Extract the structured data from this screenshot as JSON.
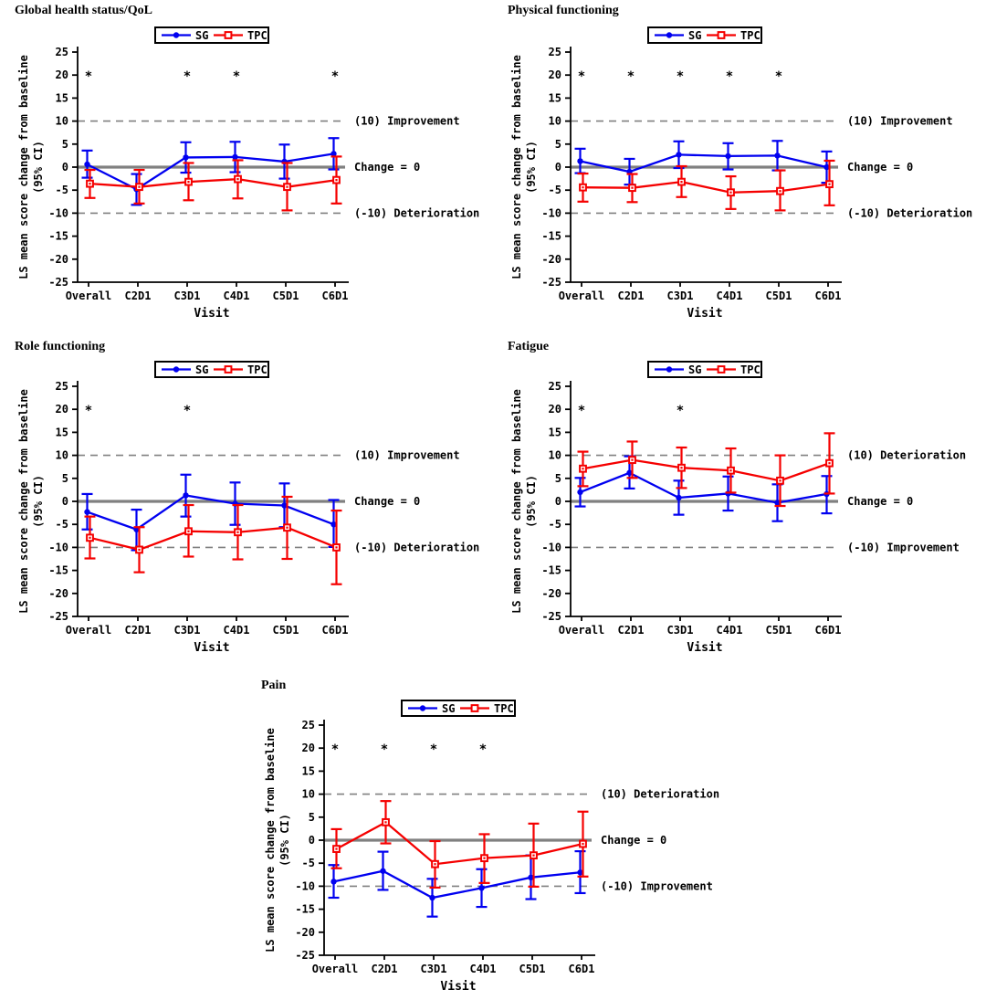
{
  "figure": {
    "description_visible_text_only": "Five line panels of LS mean score change from baseline (95% CI) by visit, SG vs TPC",
    "colors": {
      "sg": "#0000F0",
      "tpc": "#F50000",
      "zero_line": "#808080",
      "dashed_line": "#808080",
      "text": "#000000",
      "legend_border": "#000000",
      "background": "#FFFFFF"
    },
    "legend_labels": [
      "SG",
      "TPC"
    ],
    "significance_symbol": "*"
  },
  "chart_data": [
    {
      "type": "line",
      "title": "Global health status/QoL",
      "categories": [
        "Overall",
        "C2D1",
        "C3D1",
        "C4D1",
        "C5D1",
        "C6D1"
      ],
      "xlabel": "Visit",
      "ylabel_lines": [
        "LS mean score change from baseline",
        "(95% CI)"
      ],
      "ylim": [
        -25,
        25
      ],
      "ytick_step": 5,
      "legend_position": "top",
      "significance_y": 20,
      "significance_marker": "*",
      "significant_visits": [
        true,
        false,
        true,
        true,
        false,
        true
      ],
      "ref_lines": [
        {
          "y": 10,
          "style": "dashed",
          "label": "(10) Improvement"
        },
        {
          "y": 0,
          "style": "solid",
          "label": "Change = 0"
        },
        {
          "y": -10,
          "style": "dashed",
          "label": "(-10) Deterioration"
        }
      ],
      "series": [
        {
          "name": "SG",
          "color": "#0000F0",
          "marker": "filled-circle",
          "values": [
            0.6,
            -4.8,
            2.1,
            2.2,
            1.2,
            2.9
          ],
          "ci_lower": [
            -2.3,
            -8.2,
            -1.2,
            -1.1,
            -2.5,
            -0.5
          ],
          "ci_upper": [
            3.6,
            -1.5,
            5.4,
            5.5,
            4.9,
            6.3
          ]
        },
        {
          "name": "TPC",
          "color": "#F50000",
          "marker": "open-square",
          "values": [
            -3.6,
            -4.3,
            -3.2,
            -2.6,
            -4.3,
            -2.8
          ],
          "ci_lower": [
            -6.7,
            -7.9,
            -7.2,
            -6.8,
            -9.4,
            -7.9
          ],
          "ci_upper": [
            -0.6,
            -0.6,
            0.9,
            1.5,
            0.9,
            2.3
          ]
        }
      ]
    },
    {
      "type": "line",
      "title": "Physical functioning",
      "categories": [
        "Overall",
        "C2D1",
        "C3D1",
        "C4D1",
        "C5D1",
        "C6D1"
      ],
      "xlabel": "Visit",
      "ylabel_lines": [
        "LS mean score change from baseline",
        "(95% CI)"
      ],
      "ylim": [
        -25,
        25
      ],
      "ytick_step": 5,
      "legend_position": "top",
      "significance_y": 20,
      "significance_marker": "*",
      "significant_visits": [
        true,
        true,
        true,
        true,
        true,
        false
      ],
      "ref_lines": [
        {
          "y": 10,
          "style": "dashed",
          "label": "(10) Improvement"
        },
        {
          "y": 0,
          "style": "solid",
          "label": "Change = 0"
        },
        {
          "y": -10,
          "style": "dashed",
          "label": "(-10) Deterioration"
        }
      ],
      "series": [
        {
          "name": "SG",
          "color": "#0000F0",
          "marker": "filled-circle",
          "values": [
            1.3,
            -1.0,
            2.7,
            2.4,
            2.5,
            0.0
          ],
          "ci_lower": [
            -1.3,
            -3.8,
            -0.2,
            -0.5,
            -0.7,
            -3.4
          ],
          "ci_upper": [
            4.0,
            1.8,
            5.6,
            5.2,
            5.7,
            3.4
          ]
        },
        {
          "name": "TPC",
          "color": "#F50000",
          "marker": "open-square",
          "values": [
            -4.4,
            -4.5,
            -3.2,
            -5.5,
            -5.2,
            -3.7
          ],
          "ci_lower": [
            -7.5,
            -7.6,
            -6.5,
            -9.1,
            -9.4,
            -8.3
          ],
          "ci_upper": [
            -1.4,
            -1.5,
            0.2,
            -2.0,
            -0.7,
            1.4
          ]
        }
      ]
    },
    {
      "type": "line",
      "title": "Role functioning",
      "categories": [
        "Overall",
        "C2D1",
        "C3D1",
        "C4D1",
        "C5D1",
        "C6D1"
      ],
      "xlabel": "Visit",
      "ylabel_lines": [
        "LS mean score change from baseline",
        "(95% CI)"
      ],
      "ylim": [
        -25,
        25
      ],
      "ytick_step": 5,
      "legend_position": "top",
      "significance_y": 20,
      "significance_marker": "*",
      "significant_visits": [
        true,
        false,
        true,
        false,
        false,
        false
      ],
      "ref_lines": [
        {
          "y": 10,
          "style": "dashed",
          "label": "(10) Improvement"
        },
        {
          "y": 0,
          "style": "solid",
          "label": "Change = 0"
        },
        {
          "y": -10,
          "style": "dashed",
          "label": "(-10) Deterioration"
        }
      ],
      "series": [
        {
          "name": "SG",
          "color": "#0000F0",
          "marker": "filled-circle",
          "values": [
            -2.3,
            -6.1,
            1.3,
            -0.5,
            -0.9,
            -5.0
          ],
          "ci_lower": [
            -6.1,
            -10.6,
            -3.3,
            -5.1,
            -5.6,
            -9.9
          ],
          "ci_upper": [
            1.6,
            -1.8,
            5.8,
            4.1,
            3.9,
            0.3
          ]
        },
        {
          "name": "TPC",
          "color": "#F50000",
          "marker": "open-square",
          "values": [
            -7.9,
            -10.5,
            -6.5,
            -6.7,
            -5.7,
            -10.0
          ],
          "ci_lower": [
            -12.4,
            -15.4,
            -12.0,
            -12.6,
            -12.5,
            -18.0
          ],
          "ci_upper": [
            -3.3,
            -5.6,
            -0.8,
            -0.8,
            1.0,
            -2.0
          ]
        }
      ]
    },
    {
      "type": "line",
      "title": "Fatigue",
      "categories": [
        "Overall",
        "C2D1",
        "C3D1",
        "C4D1",
        "C5D1",
        "C6D1"
      ],
      "xlabel": "Visit",
      "ylabel_lines": [
        "LS mean score change from baseline",
        "(95% CI)"
      ],
      "ylim": [
        -25,
        25
      ],
      "ytick_step": 5,
      "legend_position": "top",
      "significance_y": 20,
      "significance_marker": "*",
      "significant_visits": [
        true,
        false,
        true,
        false,
        false,
        false
      ],
      "ref_lines": [
        {
          "y": 10,
          "style": "dashed",
          "label": "(10) Deterioration"
        },
        {
          "y": 0,
          "style": "solid",
          "label": "Change = 0"
        },
        {
          "y": -10,
          "style": "dashed",
          "label": "(-10) Improvement"
        }
      ],
      "series": [
        {
          "name": "SG",
          "color": "#0000F0",
          "marker": "filled-circle",
          "values": [
            2.0,
            6.2,
            0.8,
            1.7,
            -0.3,
            1.6
          ],
          "ci_lower": [
            -1.1,
            2.8,
            -2.9,
            -2.0,
            -4.3,
            -2.6
          ],
          "ci_upper": [
            5.1,
            9.8,
            4.5,
            5.4,
            3.7,
            5.5
          ]
        },
        {
          "name": "TPC",
          "color": "#F50000",
          "marker": "open-square",
          "values": [
            7.1,
            9.0,
            7.3,
            6.7,
            4.5,
            8.3
          ],
          "ci_lower": [
            3.3,
            5.1,
            2.9,
            1.9,
            -1.0,
            1.7
          ],
          "ci_upper": [
            10.8,
            13.0,
            11.7,
            11.5,
            10.0,
            14.8
          ]
        }
      ]
    },
    {
      "type": "line",
      "title": "Pain",
      "categories": [
        "Overall",
        "C2D1",
        "C3D1",
        "C4D1",
        "C5D1",
        "C6D1"
      ],
      "xlabel": "Visit",
      "ylabel_lines": [
        "LS mean score change from baseline",
        "(95% CI)"
      ],
      "ylim": [
        -25,
        25
      ],
      "ytick_step": 5,
      "legend_position": "top",
      "significance_y": 20,
      "significance_marker": "*",
      "significant_visits": [
        true,
        true,
        true,
        true,
        false,
        false
      ],
      "ref_lines": [
        {
          "y": 10,
          "style": "dashed",
          "label": "(10) Deterioration"
        },
        {
          "y": 0,
          "style": "solid",
          "label": "Change = 0"
        },
        {
          "y": -10,
          "style": "dashed",
          "label": "(-10) Improvement"
        }
      ],
      "series": [
        {
          "name": "SG",
          "color": "#0000F0",
          "marker": "filled-circle",
          "values": [
            -9.0,
            -6.7,
            -12.5,
            -10.4,
            -8.1,
            -7.0
          ],
          "ci_lower": [
            -12.5,
            -10.8,
            -16.6,
            -14.5,
            -12.8,
            -11.5
          ],
          "ci_upper": [
            -5.4,
            -2.5,
            -8.4,
            -6.3,
            -3.3,
            -2.4
          ]
        },
        {
          "name": "TPC",
          "color": "#F50000",
          "marker": "open-square",
          "values": [
            -1.9,
            3.9,
            -5.2,
            -3.9,
            -3.3,
            -0.8
          ],
          "ci_lower": [
            -6.1,
            -0.7,
            -10.3,
            -9.3,
            -10.1,
            -7.9
          ],
          "ci_upper": [
            2.4,
            8.5,
            -0.2,
            1.3,
            3.6,
            6.2
          ]
        }
      ]
    }
  ]
}
